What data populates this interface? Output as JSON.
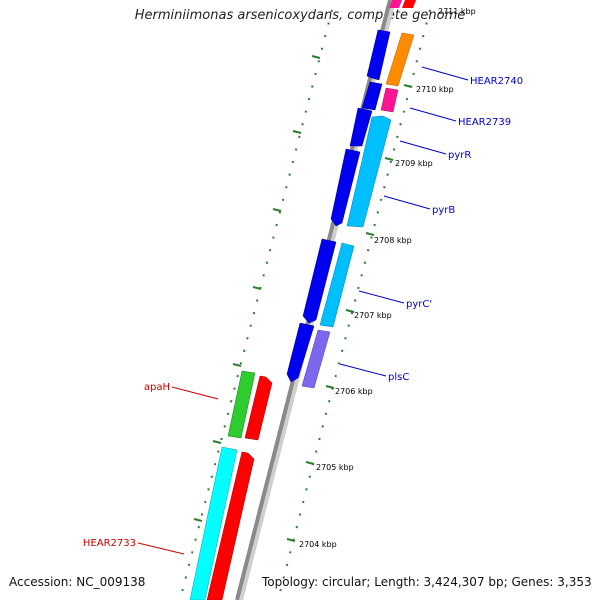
{
  "title": "Herminiimonas arsenicoxydans, complete genome",
  "accession": "Accession: NC_009138",
  "summary": "Topology: circular; Length: 3,424,307 bp; Genes: 3,353",
  "colors": {
    "backbone": "#8a8a8a",
    "tick": "#2e7d2e",
    "forward_label": "#0000cc",
    "reverse_label": "#cc0000"
  },
  "ticks": [
    {
      "label": "2711 kbp"
    },
    {
      "label": "2710 kbp"
    },
    {
      "label": "2709 kbp"
    },
    {
      "label": "2708 kbp"
    },
    {
      "label": "2707 kbp"
    },
    {
      "label": "2706 kbp"
    },
    {
      "label": "2705 kbp"
    },
    {
      "label": "2704 kbp"
    }
  ],
  "gene_labels": [
    {
      "text": "HEAR2740",
      "strand": "forward"
    },
    {
      "text": "HEAR2739",
      "strand": "forward"
    },
    {
      "text": "pyrR",
      "strand": "forward"
    },
    {
      "text": "pyrB",
      "strand": "forward"
    },
    {
      "text": "pyrC'",
      "strand": "forward"
    },
    {
      "text": "plsC",
      "strand": "forward"
    },
    {
      "text": "apaH",
      "strand": "reverse"
    },
    {
      "text": "HEAR2733",
      "strand": "reverse"
    }
  ]
}
